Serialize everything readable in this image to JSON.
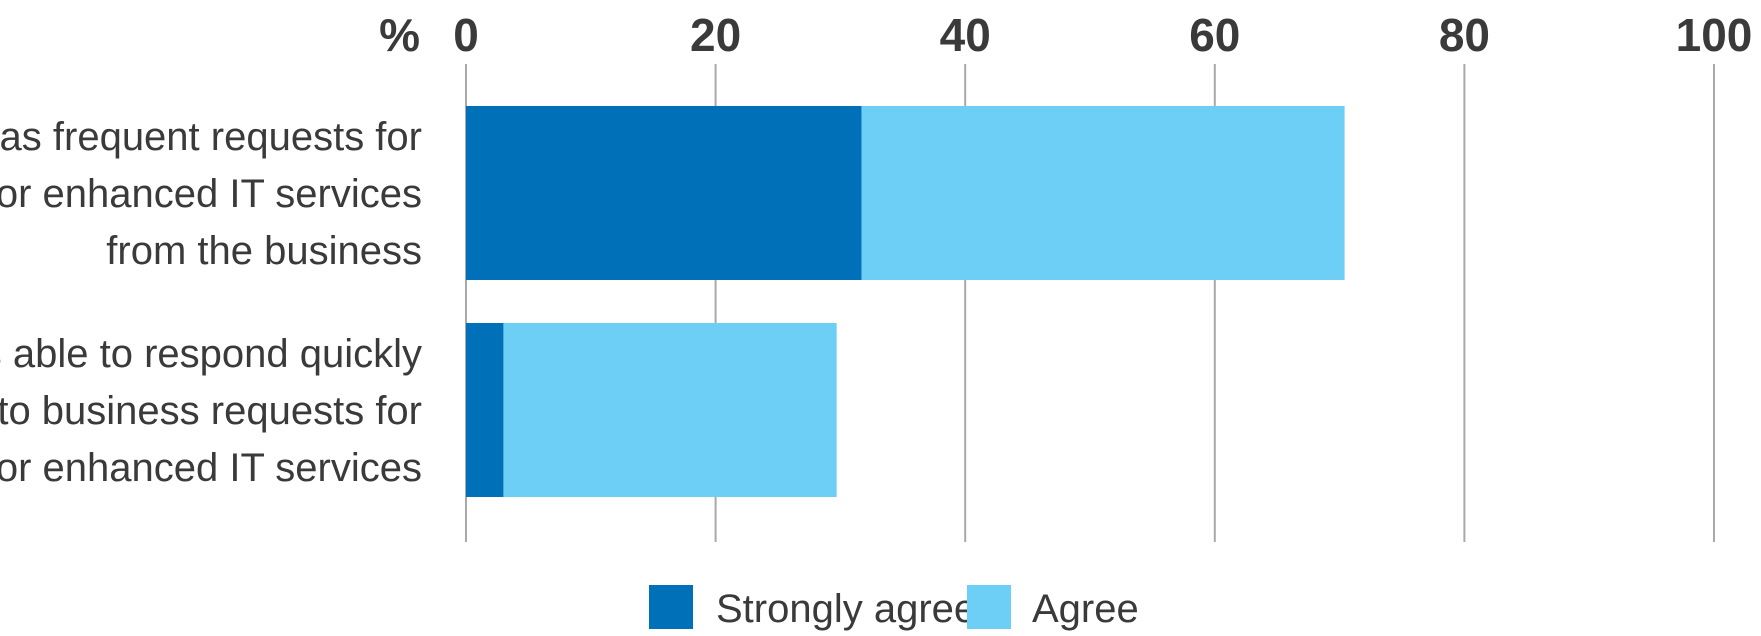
{
  "chart_data": {
    "type": "bar",
    "orientation": "horizontal",
    "stacked": true,
    "unit_label": "%",
    "categories": [
      [
        "IT has frequent requests for",
        "new or enhanced IT services",
        "from the business"
      ],
      [
        "IT is able to respond quickly",
        "to business requests for",
        "new or enhanced IT services"
      ]
    ],
    "series": [
      {
        "name": "Strongly agree",
        "values": [
          31.7,
          3.0
        ],
        "color": "#0070b8"
      },
      {
        "name": "Agree",
        "values": [
          38.7,
          26.7
        ],
        "color": "#6dcff6"
      }
    ],
    "xlim": [
      0,
      100
    ],
    "xticks": [
      0,
      20,
      40,
      60,
      80,
      100
    ],
    "grid": true,
    "legend_position": "bottom-center",
    "title": "",
    "xlabel": "",
    "ylabel": ""
  }
}
